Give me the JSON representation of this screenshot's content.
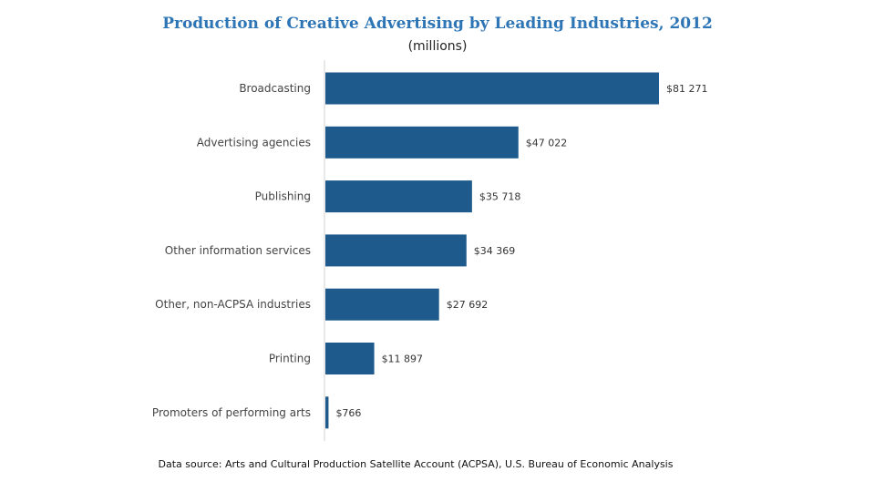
{
  "chart_data": {
    "type": "bar",
    "orientation": "horizontal",
    "title": "Production of Creative Advertising by Leading Industries, 2012",
    "subtitle": "(millions)",
    "categories": [
      "Broadcasting",
      "Advertising agencies",
      "Publishing",
      "Other information services",
      "Other, non-ACPSA industries",
      "Printing",
      "Promoters of performing arts"
    ],
    "values": [
      81271,
      47022,
      35718,
      34369,
      27692,
      11897,
      766
    ],
    "value_labels": [
      "$81 271",
      "$47 022",
      "$35 718",
      "$34 369",
      "$27 692",
      "$11 897",
      "$766"
    ],
    "xlim": [
      0,
      100000
    ],
    "grid": false,
    "legend": "none",
    "bar_color": "#1f5a8c"
  },
  "source_note": "Data source: Arts and Cultural Production Satellite Account (ACPSA), U.S. Bureau of Economic Analysis"
}
